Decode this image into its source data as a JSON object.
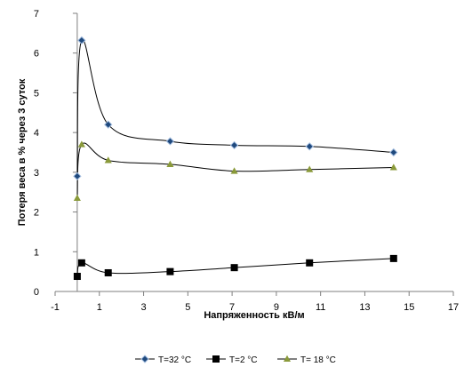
{
  "chart_data": {
    "type": "scatter",
    "title": "",
    "xlabel": "Напряженность кВ/м",
    "ylabel": "Потеря веса в % через 3 суток",
    "xlim": [
      -1,
      17
    ],
    "ylim": [
      0,
      7
    ],
    "x_ticks": [
      -1,
      1,
      3,
      5,
      7,
      9,
      11,
      13,
      15,
      17
    ],
    "y_ticks": [
      0,
      1,
      2,
      3,
      4,
      5,
      6,
      7
    ],
    "grid": false,
    "legend_position": "bottom",
    "series": [
      {
        "name": "T=32 °C",
        "marker": "diamond",
        "marker_fill": "#1f497d",
        "marker_stroke": "#a6bfe0",
        "line_color": "#000000",
        "x": [
          0,
          0.2,
          1.4,
          4.2,
          7.1,
          10.5,
          14.3
        ],
        "y": [
          2.9,
          6.32,
          4.2,
          3.78,
          3.68,
          3.65,
          3.5
        ]
      },
      {
        "name": "T=2 °C",
        "marker": "square",
        "marker_fill": "#000000",
        "marker_stroke": "#000000",
        "line_color": "#000000",
        "x": [
          0,
          0.2,
          1.4,
          4.2,
          7.1,
          10.5,
          14.3
        ],
        "y": [
          0.38,
          0.72,
          0.47,
          0.5,
          0.6,
          0.72,
          0.83
        ]
      },
      {
        "name": "T= 18 °C",
        "marker": "triangle",
        "marker_fill": "#8a9a3a",
        "marker_stroke": "#8a9a3a",
        "line_color": "#000000",
        "x": [
          0,
          0.2,
          1.4,
          4.2,
          7.1,
          10.5,
          14.3
        ],
        "y": [
          2.35,
          3.7,
          3.3,
          3.2,
          3.03,
          3.07,
          3.12
        ]
      }
    ]
  }
}
